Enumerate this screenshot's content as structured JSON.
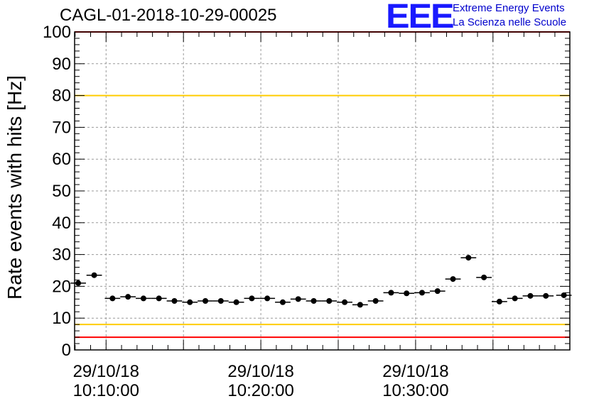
{
  "header": {
    "title": "CAGL-01-2018-10-29-00025",
    "logo_text": "EEE",
    "tagline_1": "Extreme Energy Events",
    "tagline_2": "La Scienza nelle Scuole"
  },
  "chart_data": {
    "type": "scatter",
    "title": "CAGL-01-2018-10-29-00025",
    "xlabel": "",
    "ylabel": "Rate events with hits [Hz]",
    "ylim": [
      0,
      100
    ],
    "xlim": [
      "2018-10-29 10:07:58",
      "2018-10-29 10:39:58"
    ],
    "grid": true,
    "yticks": [
      0,
      10,
      20,
      30,
      40,
      50,
      60,
      70,
      80,
      90,
      100
    ],
    "xticks": [
      {
        "t": "2018-10-29 10:10:00",
        "label_date": "29/10/18",
        "label_time": "10:10:00"
      },
      {
        "t": "2018-10-29 10:20:00",
        "label_date": "29/10/18",
        "label_time": "10:20:00"
      },
      {
        "t": "2018-10-29 10:30:00",
        "label_date": "29/10/18",
        "label_time": "10:30:00"
      }
    ],
    "series": [
      {
        "x": [
          "2018-10-29 10:08:12",
          "2018-10-29 10:09:14",
          "2018-10-29 10:10:25",
          "2018-10-29 10:11:25",
          "2018-10-29 10:12:25",
          "2018-10-29 10:13:25",
          "2018-10-29 10:14:25",
          "2018-10-29 10:15:25",
          "2018-10-29 10:16:25",
          "2018-10-29 10:17:25",
          "2018-10-29 10:18:25",
          "2018-10-29 10:19:25",
          "2018-10-29 10:20:25",
          "2018-10-29 10:21:25",
          "2018-10-29 10:22:25",
          "2018-10-29 10:23:25",
          "2018-10-29 10:24:25",
          "2018-10-29 10:25:25",
          "2018-10-29 10:26:25",
          "2018-10-29 10:27:25",
          "2018-10-29 10:28:25",
          "2018-10-29 10:29:25",
          "2018-10-29 10:30:25",
          "2018-10-29 10:31:25",
          "2018-10-29 10:32:25",
          "2018-10-29 10:33:25",
          "2018-10-29 10:34:25",
          "2018-10-29 10:35:25",
          "2018-10-29 10:36:25",
          "2018-10-29 10:37:25",
          "2018-10-29 10:38:25",
          "2018-10-29 10:39:35"
        ],
        "y": [
          21,
          23.5,
          16.2,
          16.7,
          16.2,
          16.2,
          15.4,
          15,
          15.4,
          15.4,
          15,
          16.2,
          16.2,
          15,
          16,
          15.4,
          15.4,
          15,
          14.2,
          15.4,
          18,
          17.8,
          18,
          18.5,
          22.3,
          29,
          22.8,
          15.2,
          16.2,
          17,
          17,
          17.2
        ]
      }
    ],
    "reference_lines": [
      {
        "y": 100,
        "color": "#ff0000"
      },
      {
        "y": 80,
        "color": "#ffcc00"
      },
      {
        "y": 8,
        "color": "#ffcc00"
      },
      {
        "y": 4,
        "color": "#ff0000"
      }
    ]
  }
}
